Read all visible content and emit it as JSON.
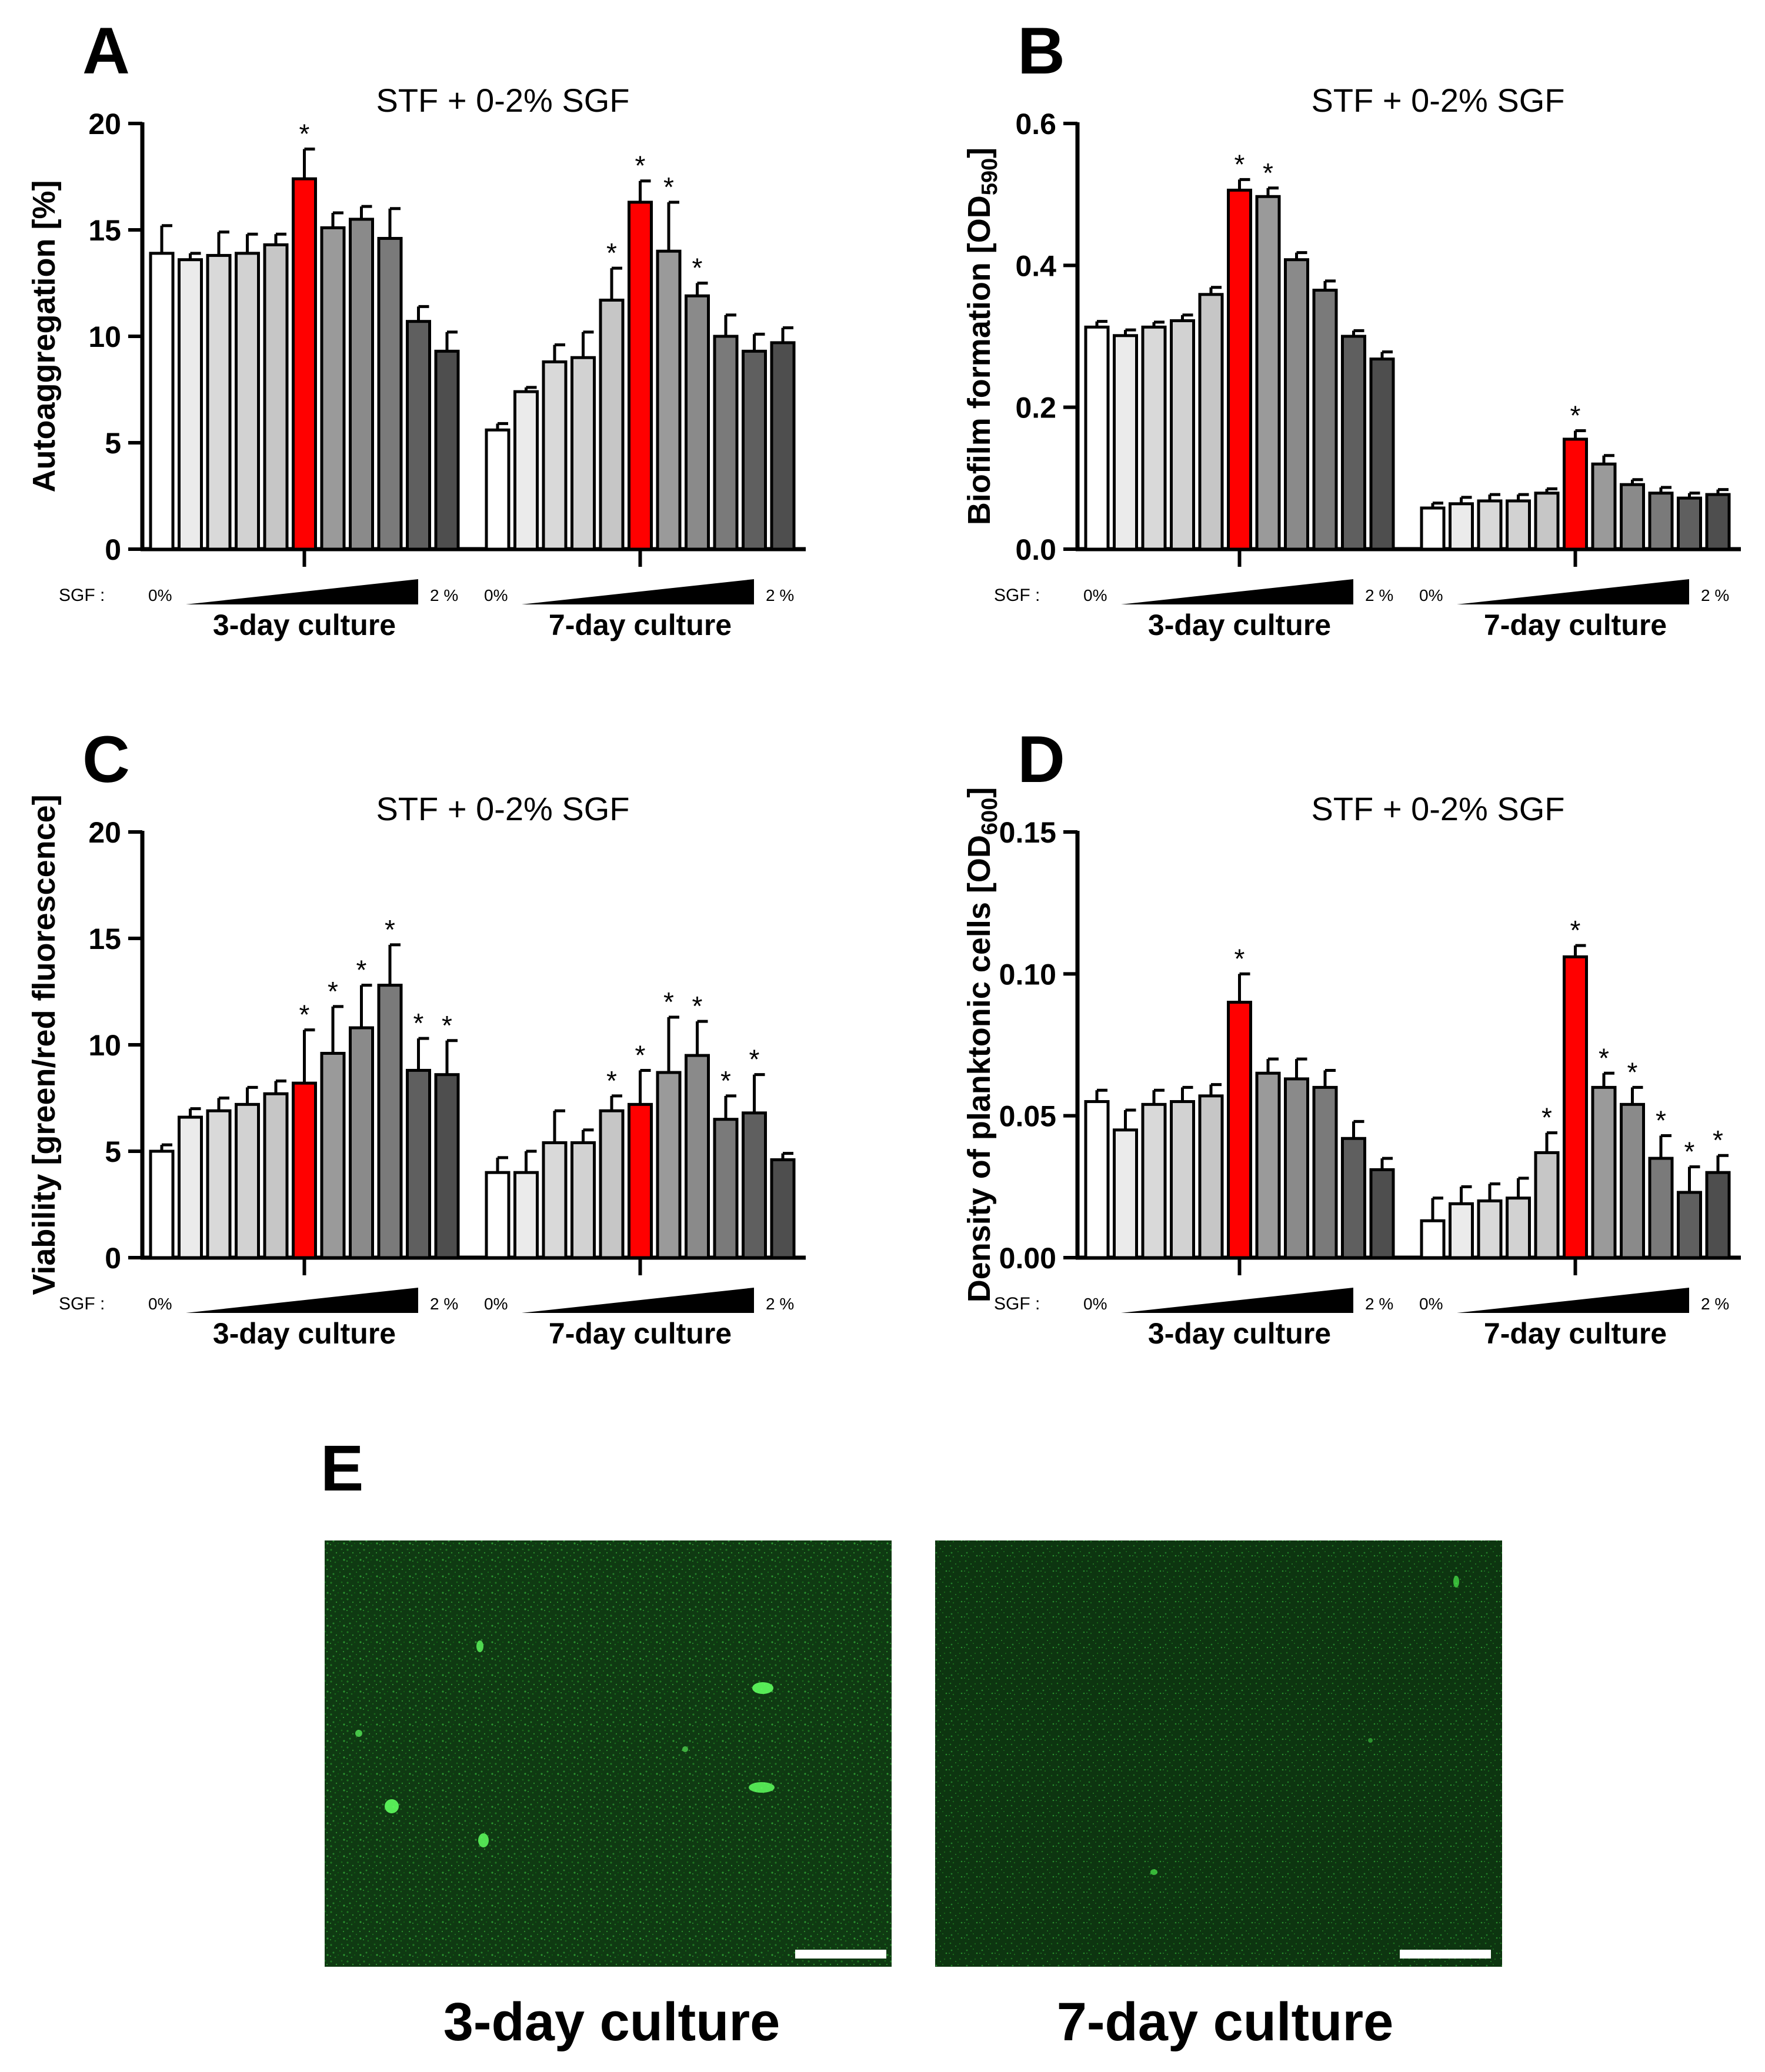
{
  "figure": {
    "panel_e": {
      "letter": "E",
      "images": [
        {
          "label": "3-day culture",
          "image_description": "green fluorescence micrograph"
        },
        {
          "label": "7-day culture",
          "image_description": "green fluorescence micrograph"
        }
      ]
    }
  },
  "common": {
    "subtitle": "STF + 0-2% SGF",
    "sgf_label": "SGF :",
    "sgf_start": "0%",
    "sgf_end": "2 %",
    "groups": [
      "3-day culture",
      "7-day culture"
    ],
    "concentration_levels": [
      "0%",
      "...",
      "2%"
    ],
    "colors": {
      "fills": [
        "#ffffff",
        "#ebebeb",
        "#d9d9d9",
        "#d2d2d2",
        "#c6c6c6",
        "#b4b4b4",
        "#9a9a9a",
        "#8a8a8a",
        "#7a7a7a",
        "#5f5f5f",
        "#4e4e4e",
        "#3c3c3c"
      ],
      "highlight": "#ff0000"
    }
  },
  "chart_data": [
    {
      "panel": "A",
      "type": "bar",
      "title": "STF + 0-2% SGF",
      "ylabel": "Autoaggregation [%]",
      "ylim": [
        0,
        20
      ],
      "yticks": [
        "0",
        "5",
        "10",
        "15",
        "20"
      ],
      "series": [
        {
          "name": "3-day culture",
          "values": [
            13.9,
            13.6,
            13.8,
            13.9,
            14.3,
            17.4,
            15.1,
            15.5,
            14.6,
            10.7,
            9.3
          ],
          "errors": [
            1.3,
            0.3,
            1.1,
            0.9,
            0.5,
            1.4,
            0.7,
            0.6,
            1.4,
            0.7,
            0.9
          ],
          "highlight_index": 5,
          "significant": [
            5
          ]
        },
        {
          "name": "7-day culture",
          "values": [
            5.6,
            7.4,
            8.8,
            9.0,
            11.7,
            16.3,
            14.0,
            11.9,
            10.0,
            9.3,
            9.7
          ],
          "errors": [
            0.3,
            0.2,
            0.8,
            1.2,
            1.5,
            1.0,
            2.3,
            0.6,
            1.0,
            0.8,
            0.7
          ],
          "highlight_index": 5,
          "significant": [
            4,
            5,
            6,
            7
          ]
        }
      ]
    },
    {
      "panel": "B",
      "type": "bar",
      "title": "STF + 0-2% SGF",
      "ylabel": "Biofilm formation [OD590]",
      "ylabel_main": "Biofilm formation [OD",
      "ylabel_sub": "590",
      "ylabel_end": "]",
      "ylim": [
        0,
        0.6
      ],
      "yticks": [
        "0.0",
        "0.2",
        "0.4",
        "0.6"
      ],
      "series": [
        {
          "name": "3-day culture",
          "values": [
            0.313,
            0.301,
            0.313,
            0.322,
            0.359,
            0.506,
            0.497,
            0.408,
            0.365,
            0.3,
            0.268
          ],
          "errors": [
            0.008,
            0.008,
            0.007,
            0.008,
            0.01,
            0.015,
            0.012,
            0.01,
            0.013,
            0.008,
            0.01
          ],
          "highlight_index": 5,
          "significant": [
            5,
            6
          ]
        },
        {
          "name": "7-day culture",
          "values": [
            0.058,
            0.064,
            0.068,
            0.068,
            0.079,
            0.155,
            0.12,
            0.091,
            0.079,
            0.072,
            0.077
          ],
          "errors": [
            0.007,
            0.009,
            0.009,
            0.009,
            0.006,
            0.012,
            0.012,
            0.007,
            0.008,
            0.007,
            0.007
          ],
          "highlight_index": 5,
          "significant": [
            5
          ]
        }
      ]
    },
    {
      "panel": "C",
      "type": "bar",
      "title": "STF + 0-2% SGF",
      "ylabel": "Viability [green/red fluorescence]",
      "ylim": [
        0,
        20
      ],
      "yticks": [
        "0",
        "5",
        "10",
        "15",
        "20"
      ],
      "series": [
        {
          "name": "3-day culture",
          "values": [
            5.0,
            6.6,
            6.9,
            7.2,
            7.7,
            8.2,
            9.6,
            10.8,
            12.8,
            8.8,
            8.6
          ],
          "errors": [
            0.3,
            0.4,
            0.6,
            0.8,
            0.6,
            2.5,
            2.2,
            2.0,
            1.9,
            1.5,
            1.6
          ],
          "highlight_index": 5,
          "significant": [
            5,
            6,
            7,
            8,
            9,
            10
          ]
        },
        {
          "name": "7-day culture",
          "values": [
            4.0,
            4.0,
            5.4,
            5.4,
            6.9,
            7.2,
            8.7,
            9.5,
            6.5,
            6.8,
            4.6
          ],
          "errors": [
            0.7,
            1.0,
            1.5,
            0.6,
            0.7,
            1.6,
            2.6,
            1.6,
            1.1,
            1.8,
            0.3
          ],
          "highlight_index": 5,
          "significant": [
            4,
            5,
            6,
            7,
            8,
            9
          ]
        }
      ]
    },
    {
      "panel": "D",
      "type": "bar",
      "title": "STF + 0-2% SGF",
      "ylabel": "Density of planktonic cells [OD600]",
      "ylabel_main": "Density of planktonic cells [OD",
      "ylabel_sub": "600",
      "ylabel_end": "]",
      "ylim": [
        0,
        0.15
      ],
      "yticks": [
        "0.00",
        "0.05",
        "0.10",
        "0.15"
      ],
      "series": [
        {
          "name": "3-day culture",
          "values": [
            0.055,
            0.045,
            0.054,
            0.055,
            0.057,
            0.09,
            0.065,
            0.063,
            0.06,
            0.042,
            0.031
          ],
          "errors": [
            0.004,
            0.007,
            0.005,
            0.005,
            0.004,
            0.01,
            0.005,
            0.007,
            0.006,
            0.006,
            0.004
          ],
          "highlight_index": 5,
          "significant": [
            5
          ]
        },
        {
          "name": "7-day culture",
          "values": [
            0.013,
            0.019,
            0.02,
            0.021,
            0.037,
            0.106,
            0.06,
            0.054,
            0.035,
            0.023,
            0.03
          ],
          "errors": [
            0.008,
            0.006,
            0.006,
            0.007,
            0.007,
            0.004,
            0.005,
            0.006,
            0.008,
            0.009,
            0.006
          ],
          "highlight_index": 5,
          "significant": [
            4,
            5,
            6,
            7,
            8,
            9,
            10
          ]
        }
      ]
    }
  ]
}
